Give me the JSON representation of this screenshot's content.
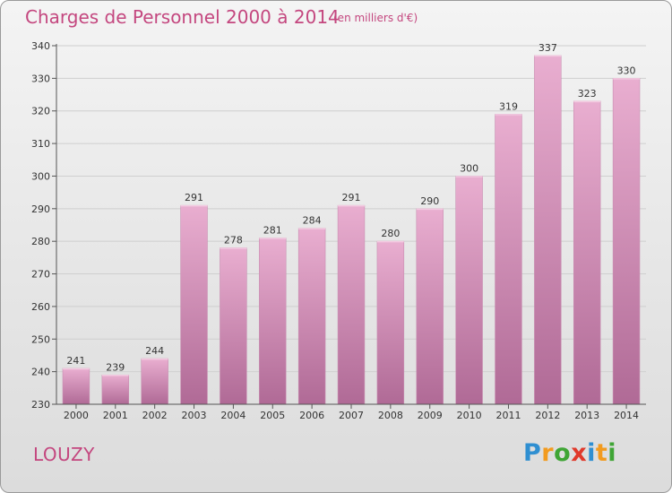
{
  "header": {
    "title": "Charges de Personnel 2000 à 2014",
    "subtitle": "(en milliers d'€)"
  },
  "footer": {
    "commune": "LOUZY",
    "logo_text": "Proxiti"
  },
  "colors": {
    "title": "#c4477f",
    "bar_top": "#e9aed0",
    "bar_bottom": "#b06a96",
    "grid": "#cfcfcf"
  },
  "chart_data": {
    "type": "bar",
    "title": "Charges de Personnel 2000 à 2014",
    "subtitle": "(en milliers d'€)",
    "xlabel": "",
    "ylabel": "",
    "categories": [
      "2000",
      "2001",
      "2002",
      "2003",
      "2004",
      "2005",
      "2006",
      "2007",
      "2008",
      "2009",
      "2010",
      "2011",
      "2012",
      "2013",
      "2014"
    ],
    "values": [
      241,
      239,
      244,
      291,
      278,
      281,
      284,
      291,
      280,
      290,
      300,
      319,
      337,
      323,
      330
    ],
    "ylim": [
      230,
      340
    ],
    "yticks": [
      230,
      240,
      250,
      260,
      270,
      280,
      290,
      300,
      310,
      320,
      330,
      340
    ],
    "grid": true,
    "data_labels": true
  }
}
